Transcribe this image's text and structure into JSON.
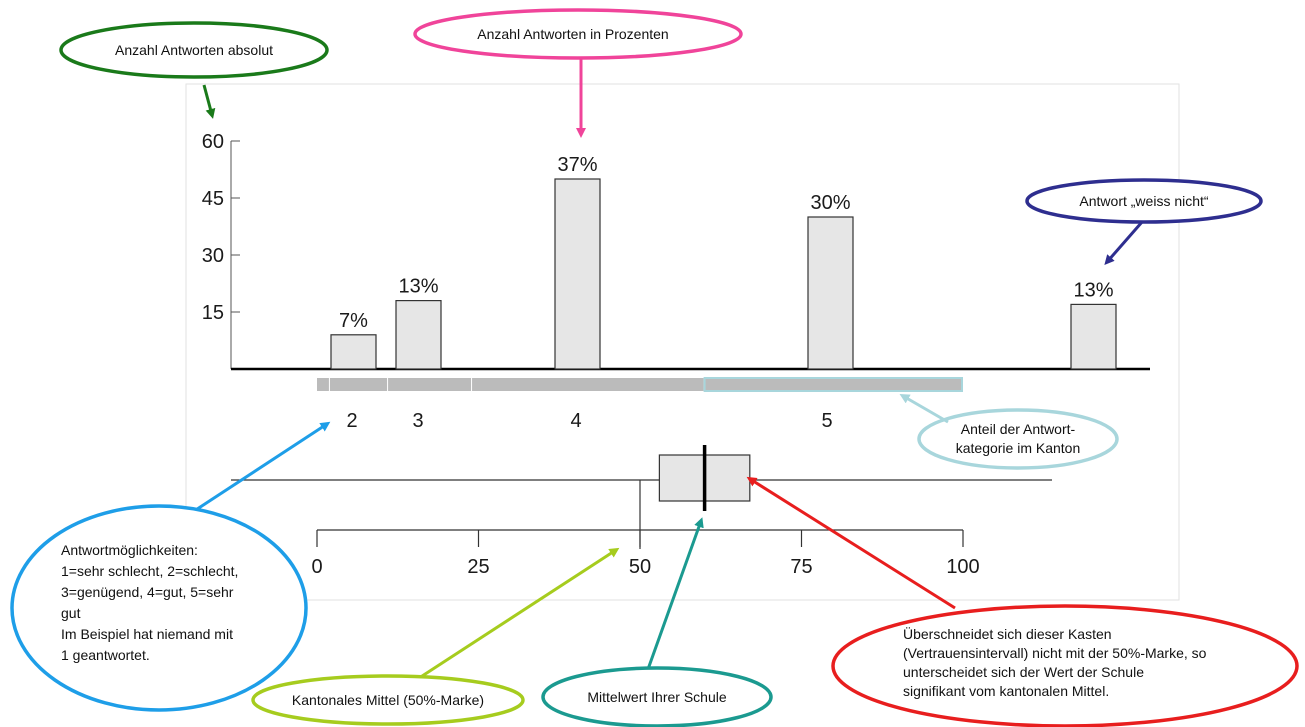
{
  "chart_data": [
    {
      "type": "bar",
      "y_ticks": [
        "60",
        "45",
        "30",
        "15"
      ],
      "ylim": [
        0,
        60
      ],
      "bars": [
        {
          "category": "2",
          "value": 9,
          "label": "7%"
        },
        {
          "category": "3",
          "value": 18,
          "label": "13%"
        },
        {
          "category": "4",
          "value": 50,
          "label": "37%"
        },
        {
          "category": "5",
          "value": 40,
          "label": "30%"
        },
        {
          "category": "",
          "value": 17,
          "label": "13%"
        }
      ],
      "category_labels": [
        "2",
        "3",
        "4",
        "5"
      ],
      "canton_share": [
        {
          "category": "1",
          "share": 0.02
        },
        {
          "category": "2",
          "share": 0.09
        },
        {
          "category": "3",
          "share": 0.13
        },
        {
          "category": "4",
          "share": 0.36
        },
        {
          "category": "5",
          "share": 0.4
        }
      ]
    },
    {
      "type": "boxplot",
      "x_ticks": [
        "0",
        "25",
        "50",
        "75",
        "100"
      ],
      "xlim": [
        0,
        100
      ],
      "canton_mean": 50,
      "school_mean": 60,
      "confidence_interval": [
        53,
        67
      ]
    }
  ],
  "annotations": {
    "abs_count": "Anzahl Antworten absolut",
    "pct_count": "Anzahl Antworten in Prozenten",
    "dont_know": "Antwort „weiss nicht“",
    "canton_share_lines": [
      "Anteil der Antwort-",
      "kategorie im Kanton"
    ],
    "options_lines": [
      "Antwortmöglichkeiten:",
      "1=sehr schlecht, 2=schlecht,",
      "3=genügend, 4=gut, 5=sehr",
      "gut",
      "Im Beispiel hat niemand mit",
      "1 geantwortet."
    ],
    "canton_mean": "Kantonales Mittel (50%-Marke)",
    "school_mean": "Mittelwert Ihrer Schule",
    "significance_lines": [
      "Überschneidet sich dieser Kasten",
      "(Vertrauensintervall) nicht mit der 50%-Marke, so",
      "unterscheidet sich der Wert der Schule",
      "signifikant vom kantonalen Mittel."
    ]
  },
  "colors": {
    "green": "#1a7a1a",
    "pink": "#f0449a",
    "navy": "#2e2e8f",
    "light_blue": "#a8d6dc",
    "blue": "#1e9ee8",
    "lime": "#a6cc1e",
    "teal": "#1b9a90",
    "red": "#e81e1e",
    "bar_fill": "#e6e6e6",
    "canton_bar": "#bbbbbb"
  }
}
